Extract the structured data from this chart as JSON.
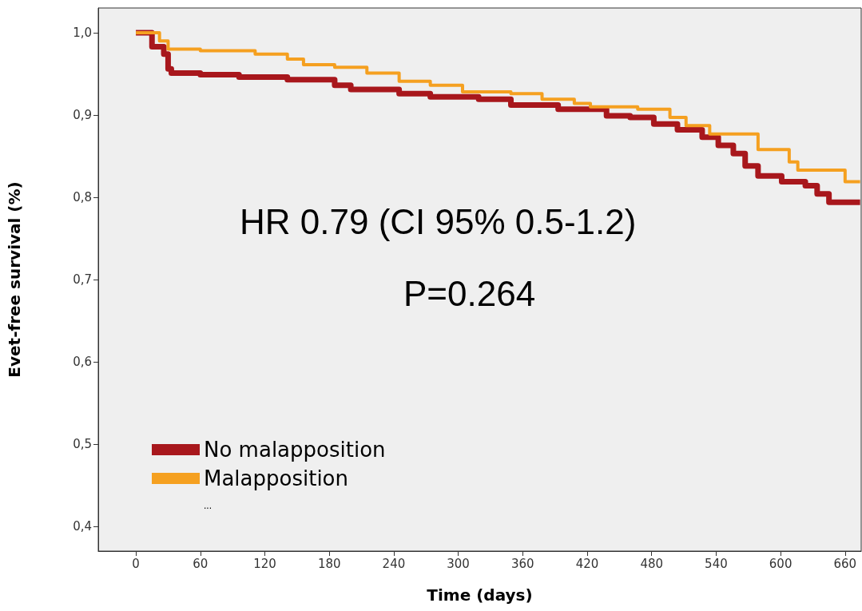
{
  "chart_data": {
    "type": "step",
    "xlabel": "Time (days)",
    "ylabel": "Evet-free survival (%)",
    "xlim": [
      -35,
      675
    ],
    "xticks": [
      0,
      60,
      120,
      180,
      240,
      300,
      360,
      420,
      480,
      540,
      600,
      660
    ],
    "ylim": [
      0.37,
      1.03
    ],
    "yticks": [
      {
        "value": 0.4,
        "label": "0,4"
      },
      {
        "value": 0.5,
        "label": "0,5"
      },
      {
        "value": 0.6,
        "label": "0,6"
      },
      {
        "value": 0.7,
        "label": "0,7"
      },
      {
        "value": 0.8,
        "label": "0,8"
      },
      {
        "value": 0.9,
        "label": "0,9"
      },
      {
        "value": 1.0,
        "label": "1,0"
      }
    ],
    "grid": false,
    "legend": "bottom left",
    "marker": "none",
    "annotations": [
      "HR 0.79 (CI 95% 0.5-1.2)",
      "P=0.264",
      "..."
    ],
    "series": [
      {
        "name": "No malapposition",
        "color": "#a8171c",
        "x": [
          0,
          15,
          26,
          30,
          33,
          60,
          96,
          141,
          185,
          200,
          245,
          274,
          319,
          349,
          393,
          438,
          460,
          482,
          504,
          527,
          542,
          556,
          567,
          579,
          601,
          623,
          634,
          645,
          674
        ],
        "values": [
          1.0,
          0.983,
          0.974,
          0.956,
          0.951,
          0.949,
          0.946,
          0.943,
          0.936,
          0.931,
          0.926,
          0.922,
          0.919,
          0.912,
          0.907,
          0.899,
          0.897,
          0.889,
          0.882,
          0.873,
          0.863,
          0.853,
          0.838,
          0.826,
          0.819,
          0.814,
          0.804,
          0.794,
          0.794
        ]
      },
      {
        "name": "Malapposition",
        "color": "#f5a020",
        "x": [
          0,
          22,
          30,
          60,
          111,
          141,
          156,
          185,
          215,
          245,
          274,
          304,
          349,
          378,
          408,
          423,
          467,
          497,
          512,
          534,
          564,
          579,
          601,
          608,
          616,
          653,
          660,
          674
        ],
        "values": [
          1.0,
          0.99,
          0.98,
          0.978,
          0.974,
          0.968,
          0.961,
          0.958,
          0.951,
          0.941,
          0.936,
          0.928,
          0.926,
          0.919,
          0.914,
          0.91,
          0.907,
          0.897,
          0.887,
          0.877,
          0.877,
          0.858,
          0.858,
          0.843,
          0.833,
          0.833,
          0.819,
          0.819
        ]
      }
    ]
  }
}
